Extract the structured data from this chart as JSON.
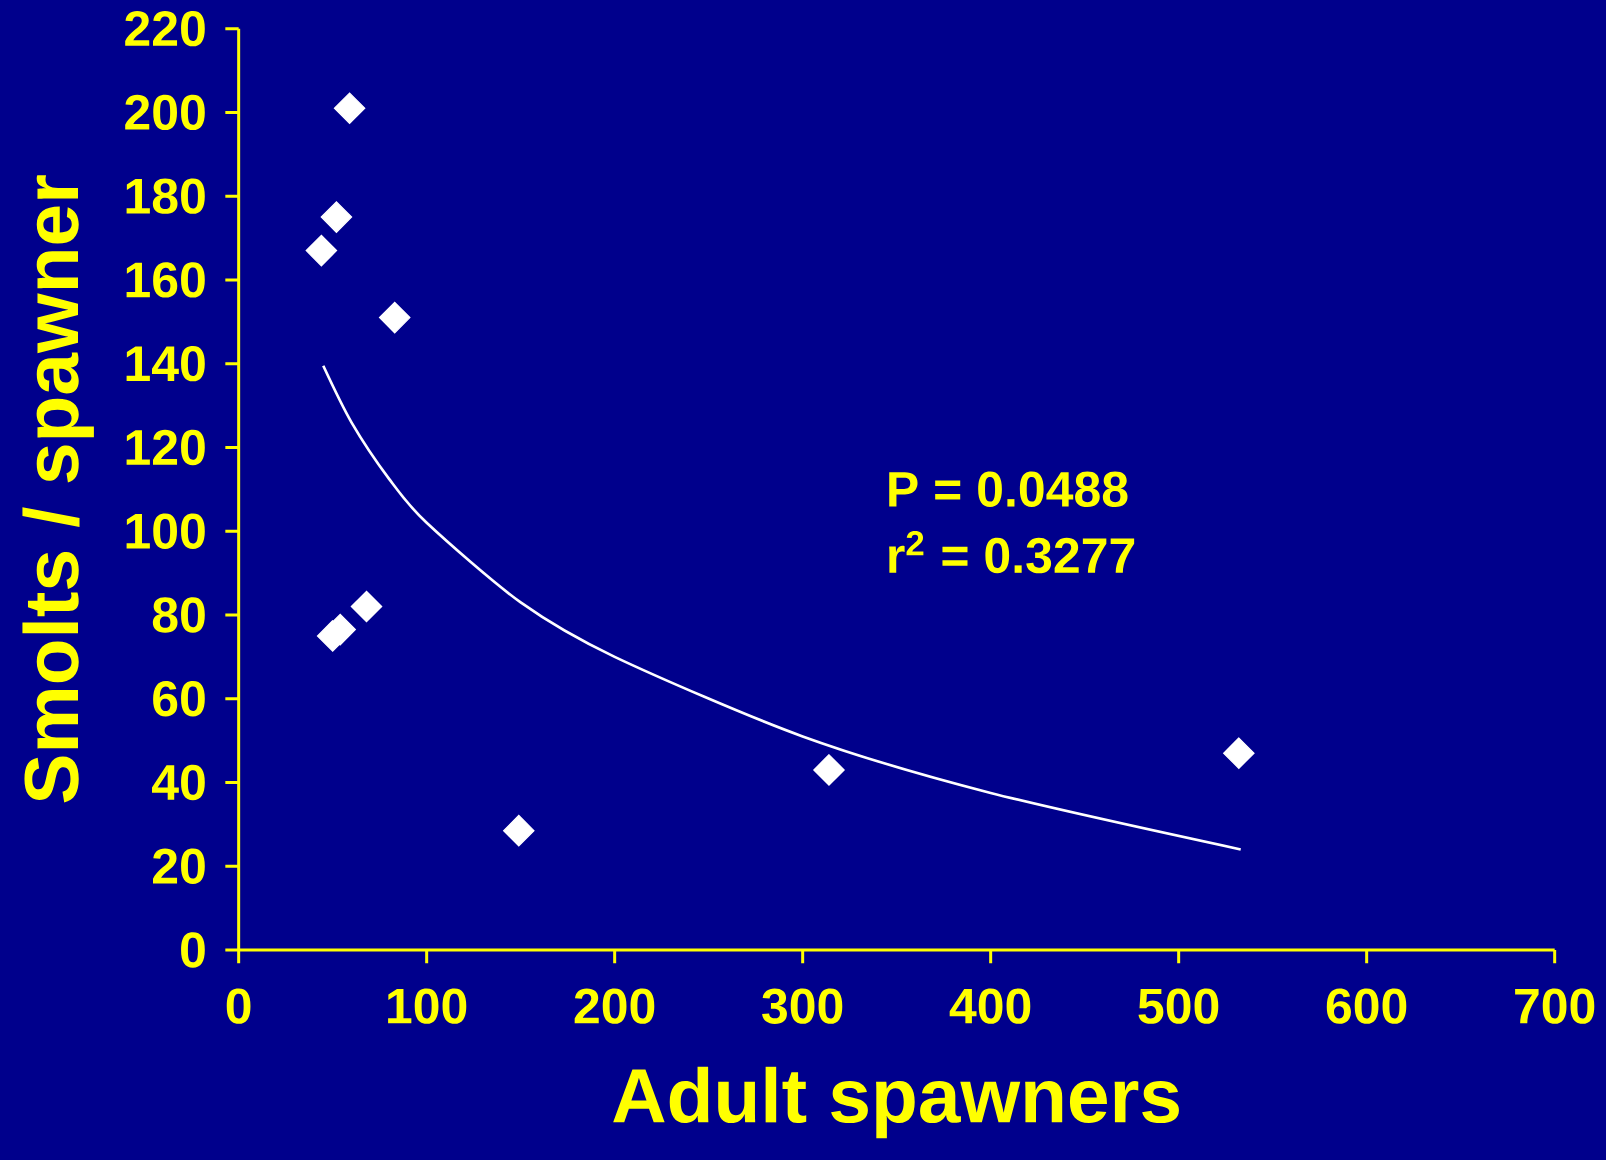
{
  "chart_data": {
    "type": "scatter",
    "xlabel": "Adult spawners",
    "ylabel": "Smolts / spawner",
    "annotations": [
      "P = 0.0488",
      "r$^{2}$ = 0.3277"
    ],
    "xlim": [
      0,
      700
    ],
    "xticks": [
      0,
      100,
      200,
      300,
      400,
      500,
      600,
      700
    ],
    "ylim": [
      0,
      220
    ],
    "yticks": [
      0,
      20,
      40,
      60,
      80,
      100,
      120,
      140,
      160,
      180,
      200,
      220
    ],
    "grid": false,
    "series": [
      {
        "marker": "diamond",
        "color": "#ffffff",
        "x": [
          44,
          52,
          59,
          83,
          68,
          54,
          50,
          149,
          314,
          532
        ],
        "values": [
          167,
          175,
          201,
          151,
          82,
          76.5,
          75,
          28.5,
          43,
          47
        ]
      },
      {
        "type": "line",
        "marker": "none",
        "line_style": "solid",
        "color": "#ffffff",
        "x": [
          45,
          60,
          80,
          100,
          150,
          200,
          300,
          400,
          533
        ],
        "values": [
          139.5,
          126,
          112.5,
          102,
          83,
          70,
          51,
          37.5,
          24
        ]
      }
    ]
  }
}
